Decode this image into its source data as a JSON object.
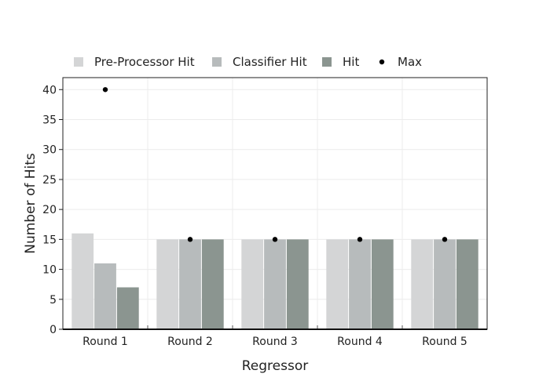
{
  "chart_data": {
    "type": "bar",
    "title": "",
    "xlabel": "Regressor",
    "ylabel": "Number of Hits",
    "ylim": [
      0,
      42
    ],
    "yticks": [
      0,
      5,
      10,
      15,
      20,
      25,
      30,
      35,
      40
    ],
    "grid": true,
    "legend_position": "top",
    "categories": [
      "Round 1",
      "Round 2",
      "Round 3",
      "Round 4",
      "Round 5"
    ],
    "series": [
      {
        "name": "Pre-Processor Hit",
        "type": "bar",
        "color": "#d4d5d6",
        "values": [
          16,
          15,
          15,
          15,
          15
        ]
      },
      {
        "name": "Classifier Hit",
        "type": "bar",
        "color": "#b7bbbc",
        "values": [
          11,
          15,
          15,
          15,
          15
        ]
      },
      {
        "name": "Hit",
        "type": "bar",
        "color": "#8b9590",
        "values": [
          7,
          15,
          15,
          15,
          15
        ]
      },
      {
        "name": "Max",
        "type": "scatter",
        "color": "#000000",
        "values": [
          40,
          15,
          15,
          15,
          15
        ]
      }
    ]
  }
}
